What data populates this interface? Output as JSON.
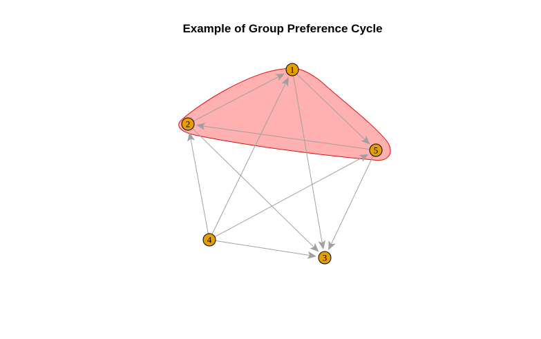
{
  "title": "Example of Group Preference Cycle",
  "colors": {
    "node_fill": "#E69F00",
    "node_stroke": "#000000",
    "edge": "#A0A0A0",
    "group_fill": "#FFB0B0",
    "group_stroke": "#E01010"
  },
  "nodes": [
    {
      "id": "1",
      "label": "1"
    },
    {
      "id": "2",
      "label": "2"
    },
    {
      "id": "3",
      "label": "3"
    },
    {
      "id": "4",
      "label": "4"
    },
    {
      "id": "5",
      "label": "5"
    }
  ],
  "edges": [
    {
      "from": "2",
      "to": "1"
    },
    {
      "from": "1",
      "to": "5"
    },
    {
      "from": "5",
      "to": "2"
    },
    {
      "from": "1",
      "to": "3"
    },
    {
      "from": "2",
      "to": "3"
    },
    {
      "from": "4",
      "to": "2"
    },
    {
      "from": "4",
      "to": "1"
    },
    {
      "from": "4",
      "to": "5"
    },
    {
      "from": "4",
      "to": "3"
    },
    {
      "from": "5",
      "to": "3"
    }
  ],
  "group": {
    "members": [
      "1",
      "2",
      "5"
    ]
  }
}
